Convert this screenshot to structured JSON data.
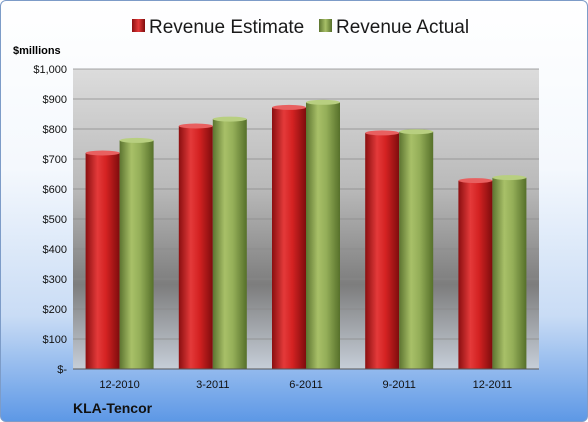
{
  "chart_data": {
    "type": "bar",
    "categories": [
      "12-2010",
      "3-2011",
      "6-2011",
      "9-2011",
      "12-2011"
    ],
    "series": [
      {
        "name": "Revenue Estimate",
        "values": [
          720,
          810,
          872,
          787,
          628
        ],
        "color": "#c81e1e"
      },
      {
        "name": "Revenue Actual",
        "values": [
          762,
          833,
          889,
          791,
          638
        ],
        "color": "#86a24a"
      }
    ],
    "ylabel": "$millions",
    "ylim": [
      0,
      1000
    ],
    "yticks": [
      0,
      100,
      200,
      300,
      400,
      500,
      600,
      700,
      800,
      900,
      1000
    ],
    "ytick_labels": [
      "$-",
      "$100",
      "$200",
      "$300",
      "$400",
      "$500",
      "$600",
      "$700",
      "$800",
      "$900",
      "$1,000"
    ],
    "legend_position": "top",
    "grid": true,
    "annotation": "KLA-Tencor"
  }
}
